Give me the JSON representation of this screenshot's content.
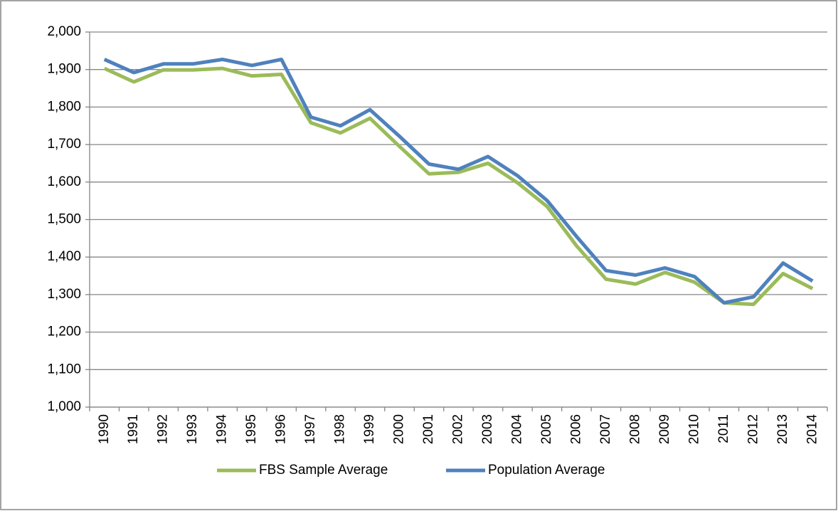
{
  "chart_data": {
    "type": "line",
    "categories": [
      "1990",
      "1991",
      "1992",
      "1993",
      "1994",
      "1995",
      "1996",
      "1997",
      "1998",
      "1999",
      "2000",
      "2001",
      "2002",
      "2003",
      "2004",
      "2005",
      "2006",
      "2007",
      "2008",
      "2009",
      "2010",
      "2011",
      "2012",
      "2013",
      "2014"
    ],
    "series": [
      {
        "name": "FBS Sample Average",
        "color": "#9bbb59",
        "values": [
          1903,
          1867,
          1899,
          1899,
          1903,
          1883,
          1887,
          1758,
          1731,
          1770,
          1695,
          1622,
          1626,
          1650,
          1598,
          1535,
          1430,
          1341,
          1328,
          1359,
          1333,
          1278,
          1274,
          1356,
          1316
        ]
      },
      {
        "name": "Population Average",
        "color": "#4f81bd",
        "values": [
          1927,
          1892,
          1915,
          1915,
          1927,
          1911,
          1927,
          1773,
          1750,
          1793,
          1722,
          1648,
          1634,
          1668,
          1617,
          1551,
          1455,
          1364,
          1352,
          1371,
          1348,
          1278,
          1294,
          1384,
          1336
        ]
      }
    ],
    "ylim": [
      1000,
      2000
    ],
    "yticks": [
      {
        "value": 1000,
        "label": "1,000"
      },
      {
        "value": 1100,
        "label": "1,100"
      },
      {
        "value": 1200,
        "label": "1,200"
      },
      {
        "value": 1300,
        "label": "1,300"
      },
      {
        "value": 1400,
        "label": "1,400"
      },
      {
        "value": 1500,
        "label": "1,500"
      },
      {
        "value": 1600,
        "label": "1,600"
      },
      {
        "value": 1700,
        "label": "1,700"
      },
      {
        "value": 1800,
        "label": "1,800"
      },
      {
        "value": 1900,
        "label": "1,900"
      },
      {
        "value": 2000,
        "label": "2,000"
      }
    ],
    "grid": true,
    "legend": "bottom"
  }
}
